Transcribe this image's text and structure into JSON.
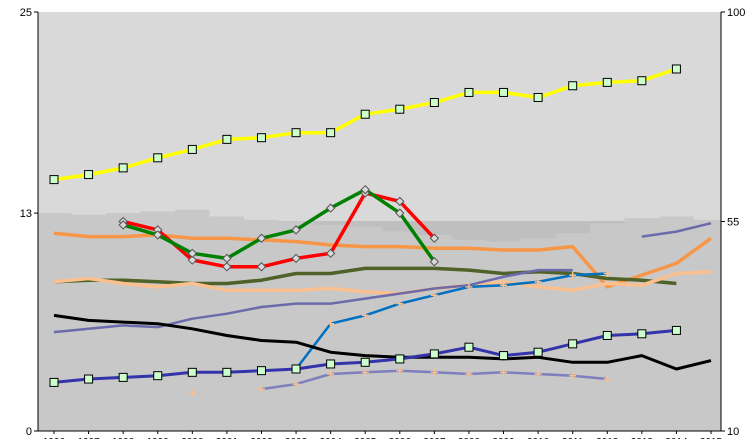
{
  "chart_data": {
    "type": "line",
    "title": "",
    "xlabel": "",
    "ylabel": "",
    "x": [
      "1996",
      "1997",
      "1998",
      "1999",
      "2000",
      "2001",
      "2002",
      "2003",
      "2004",
      "2005",
      "2006",
      "2007",
      "2008",
      "2009",
      "2010",
      "2011",
      "2012",
      "2013",
      "2014",
      "2015"
    ],
    "xtick_labels": [
      "1996",
      "1997",
      "1998",
      "1999",
      "2000",
      "2001",
      "2002",
      "2003",
      "2004",
      "2005",
      "2006",
      "2007",
      "2008",
      "2009",
      "2010",
      "2011",
      "2012",
      "2013",
      "2014",
      "2015"
    ],
    "y_left": {
      "ylim": [
        0,
        25
      ],
      "ticks": [
        "0",
        "13",
        "25"
      ]
    },
    "y_right": {
      "ylim": [
        10,
        100
      ],
      "ticks": [
        "10",
        "55",
        "100"
      ]
    },
    "grid": false,
    "legend": "none",
    "colors": {
      "plot_bg_upper": "#d9d9d9",
      "plot_bg_lower": "#bfbfbf",
      "background_area": "#c8c8c8"
    },
    "background_area": {
      "axis": "left",
      "values": [
        13.0,
        12.9,
        13.0,
        13.1,
        13.2,
        12.8,
        12.6,
        12.5,
        12.3,
        12.2,
        11.9,
        11.7,
        11.4,
        11.3,
        11.5,
        11.8,
        12.4,
        12.7,
        12.8,
        12.6
      ]
    },
    "series": [
      {
        "key": "yellow",
        "axis": "left",
        "color": "#ffff00",
        "width": 3.5,
        "marker": "square",
        "marker_fill": "#ccffcc",
        "values": [
          15.0,
          15.3,
          15.7,
          16.3,
          16.8,
          17.4,
          17.5,
          17.8,
          17.8,
          18.9,
          19.2,
          19.6,
          20.2,
          20.2,
          19.9,
          20.6,
          20.8,
          20.9,
          21.6,
          null
        ]
      },
      {
        "key": "orange",
        "axis": "left",
        "color": "#f79646",
        "width": 3.5,
        "marker": "none",
        "values": [
          11.8,
          11.6,
          11.6,
          11.7,
          11.5,
          11.5,
          11.4,
          11.3,
          11.1,
          11.0,
          11.0,
          10.9,
          10.9,
          10.8,
          10.8,
          11.0,
          8.6,
          9.3,
          10.0,
          11.5
        ]
      },
      {
        "key": "red",
        "axis": "left",
        "color": "#ff0000",
        "width": 3.5,
        "marker": "diamond",
        "marker_fill": "#d9d9d9",
        "values": [
          null,
          null,
          12.5,
          12.0,
          10.2,
          9.8,
          9.8,
          10.3,
          10.6,
          14.2,
          13.7,
          11.5,
          null,
          null,
          null,
          null,
          null,
          null,
          null,
          null
        ]
      },
      {
        "key": "green",
        "axis": "left",
        "color": "#008000",
        "width": 3.5,
        "marker": "diamond",
        "marker_fill": "#d9d9d9",
        "values": [
          null,
          null,
          12.3,
          11.7,
          10.6,
          10.3,
          11.5,
          12.0,
          13.3,
          14.4,
          13.0,
          10.1,
          null,
          null,
          null,
          null,
          null,
          null,
          null,
          null
        ]
      },
      {
        "key": "darkolive",
        "axis": "left",
        "color": "#4f6228",
        "width": 3.5,
        "marker": "none",
        "values": [
          8.9,
          9.0,
          9.0,
          8.9,
          8.8,
          8.8,
          9.0,
          9.4,
          9.4,
          9.7,
          9.7,
          9.7,
          9.6,
          9.4,
          9.5,
          9.4,
          9.1,
          9.0,
          8.8,
          null
        ]
      },
      {
        "key": "peach",
        "axis": "left",
        "color": "#fac090",
        "width": 3.5,
        "marker": "none",
        "values": [
          8.9,
          9.1,
          8.8,
          8.6,
          8.8,
          8.4,
          8.4,
          8.4,
          8.5,
          8.3,
          8.2,
          8.5,
          8.7,
          8.9,
          8.6,
          8.4,
          8.8,
          8.7,
          9.4,
          9.5
        ]
      },
      {
        "key": "slateblue",
        "axis": "left",
        "color": "#6b6bab",
        "width": 2.5,
        "marker": "none",
        "values": [
          5.9,
          6.1,
          6.3,
          6.2,
          6.7,
          7.0,
          7.4,
          7.6,
          7.6,
          7.9,
          8.2,
          8.5,
          8.7,
          9.2,
          9.6,
          9.6,
          null,
          11.6,
          11.9,
          12.4
        ]
      },
      {
        "key": "blue",
        "axis": "left",
        "color": "#0070c0",
        "width": 2.5,
        "marker": "plus",
        "marker_fill": "#fac090",
        "values": [
          null,
          null,
          null,
          null,
          null,
          null,
          null,
          3.7,
          6.4,
          6.9,
          7.6,
          8.1,
          8.6,
          8.7,
          8.9,
          9.3,
          9.4,
          null,
          null,
          null
        ]
      },
      {
        "key": "black",
        "axis": "left",
        "color": "#000000",
        "width": 3,
        "marker": "none",
        "values": [
          6.9,
          6.6,
          6.5,
          6.4,
          6.1,
          5.7,
          5.4,
          5.3,
          4.7,
          4.5,
          4.4,
          4.4,
          4.4,
          4.3,
          4.4,
          4.1,
          4.1,
          4.5,
          3.7,
          4.2
        ]
      },
      {
        "key": "navy",
        "axis": "left",
        "color": "#3333aa",
        "width": 3,
        "marker": "square",
        "marker_fill": "#ccffcc",
        "values": [
          2.9,
          3.1,
          3.2,
          3.3,
          3.5,
          3.5,
          3.6,
          3.7,
          4.0,
          4.1,
          4.3,
          4.6,
          5.0,
          4.5,
          4.7,
          5.2,
          5.7,
          5.8,
          6.0,
          null
        ]
      },
      {
        "key": "purple",
        "axis": "left",
        "color": "#7f7fbf",
        "width": 2.5,
        "marker": "plus",
        "marker_fill": "#fac090",
        "values": [
          null,
          null,
          null,
          null,
          null,
          null,
          2.5,
          2.8,
          3.4,
          3.5,
          3.6,
          3.5,
          3.4,
          3.5,
          3.4,
          3.3,
          3.1,
          null,
          null,
          null
        ]
      },
      {
        "key": "isolated",
        "axis": "left",
        "color": "#fac090",
        "width": 0,
        "marker": "plus",
        "marker_fill": "#fac090",
        "values": [
          null,
          null,
          null,
          null,
          2.3,
          null,
          null,
          null,
          null,
          null,
          null,
          null,
          null,
          null,
          null,
          null,
          null,
          null,
          null,
          null
        ]
      }
    ]
  }
}
